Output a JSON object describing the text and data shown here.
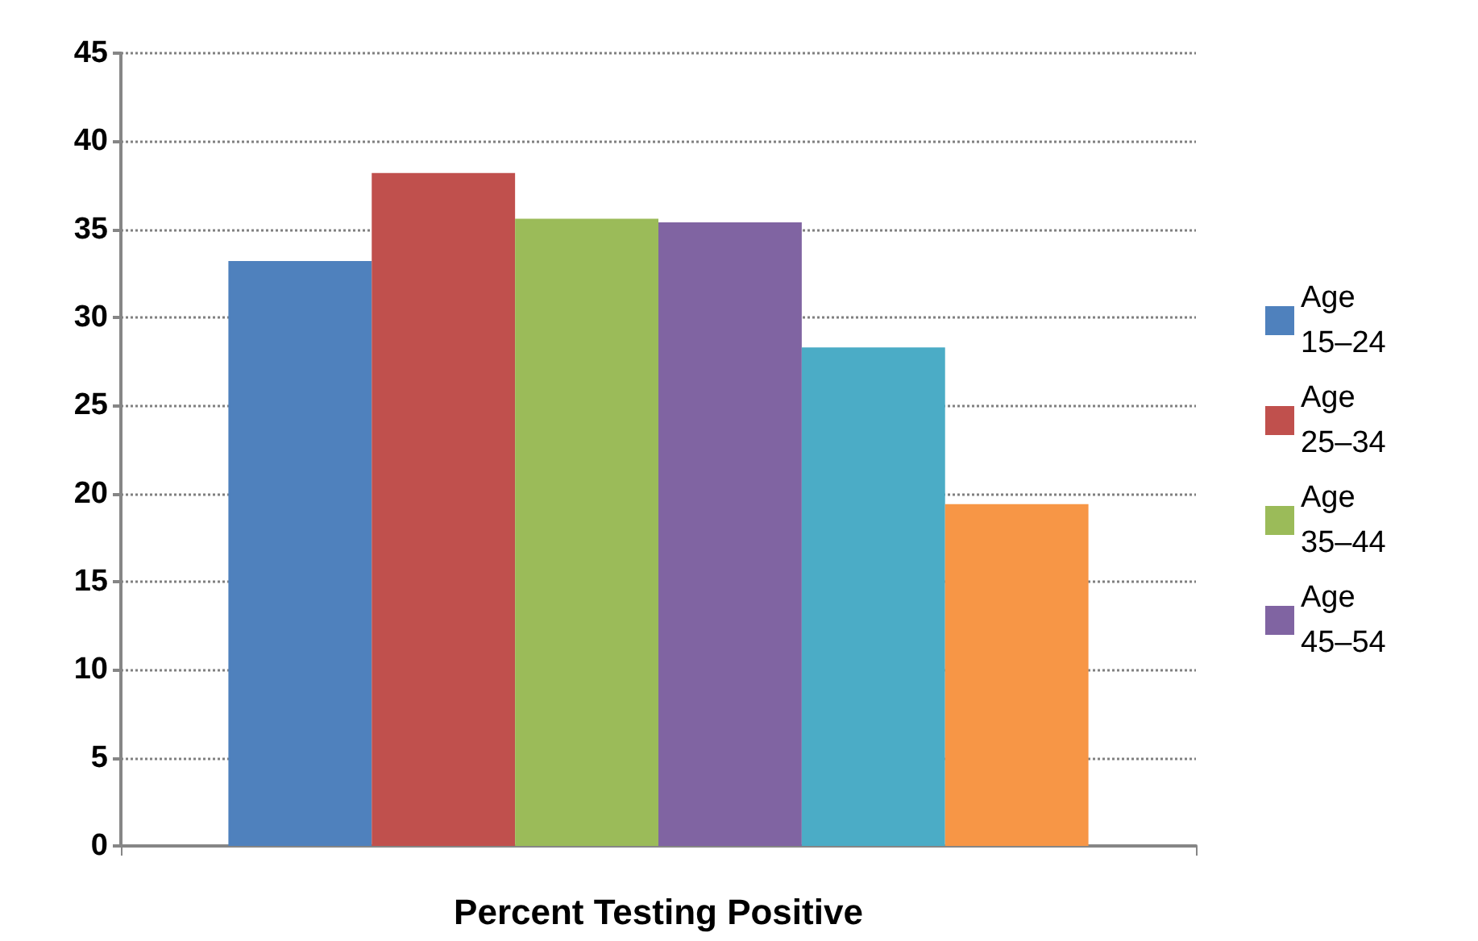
{
  "chart_data": {
    "type": "bar",
    "categories": [
      "Percent Testing Positive"
    ],
    "series": [
      {
        "name": "Age 15–24",
        "color": "#4f81bd",
        "values": [
          33.2
        ]
      },
      {
        "name": "Age 25–34",
        "color": "#c0504d",
        "values": [
          38.2
        ]
      },
      {
        "name": "Age 35–44",
        "color": "#9bbb59",
        "values": [
          35.6
        ]
      },
      {
        "name": "Age 45–54",
        "color": "#8064a2",
        "values": [
          35.4
        ]
      },
      {
        "color": "#4bacc6",
        "values": [
          28.3
        ]
      },
      {
        "color": "#f79646",
        "values": [
          19.4
        ]
      }
    ],
    "ylim": [
      0,
      45
    ],
    "yticks": [
      0,
      5,
      10,
      15,
      20,
      25,
      30,
      35,
      40,
      45
    ],
    "grid": "y",
    "legend": "right"
  }
}
